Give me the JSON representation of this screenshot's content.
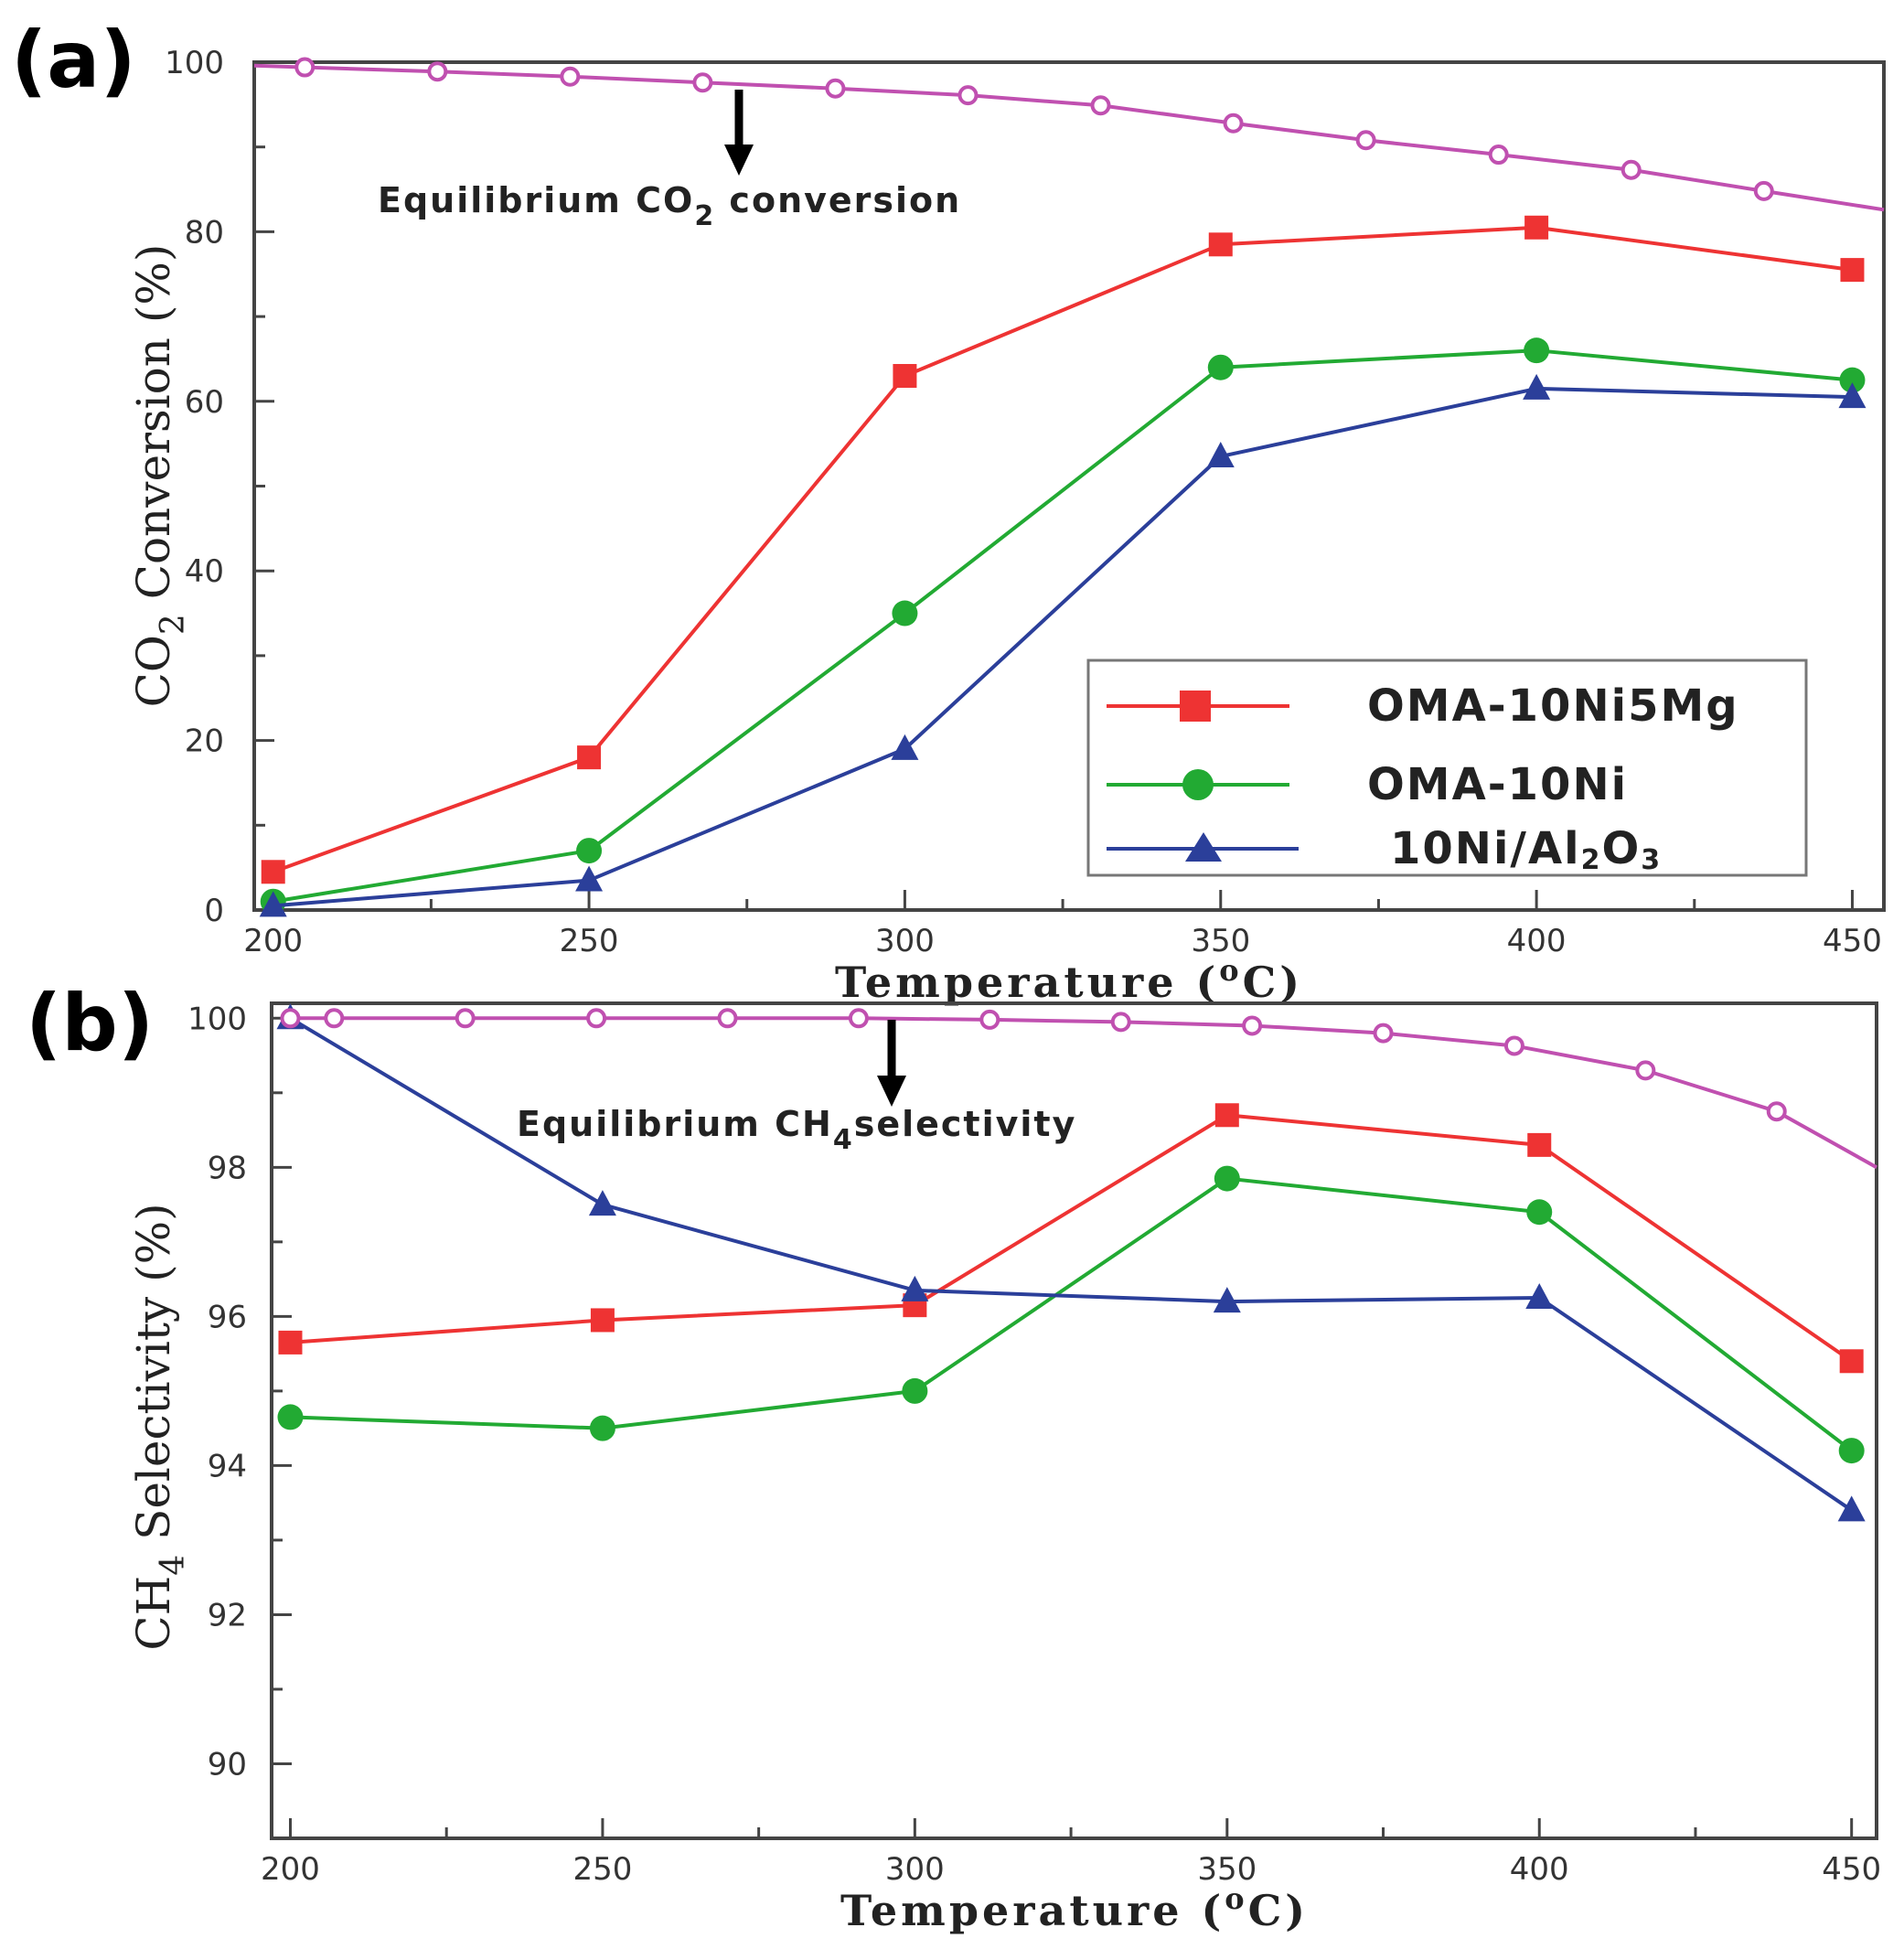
{
  "figure": {
    "panels": [
      {
        "panel_label": "(a)",
        "annotation": {
          "main": "Equilibrium CO",
          "sub": "2",
          "tail": " conversion"
        },
        "xlabel": {
          "main": "Temperature (",
          "sup": "o",
          "tail": "C)"
        },
        "ylabel": {
          "main": "CO",
          "sub": "2",
          "tail": " Conversion (%)"
        }
      },
      {
        "panel_label": "(b)",
        "annotation": {
          "main": "Equilibrium CH",
          "sub": "4",
          "tail": "selectivity"
        },
        "xlabel": {
          "main": "Temperature (",
          "sup": "o",
          "tail": "C)"
        },
        "ylabel": {
          "main": "CH",
          "sub": "4",
          "tail": " Selectivity (%)"
        }
      }
    ],
    "legend": [
      {
        "label": "OMA-10Ni5Mg",
        "color": "#ee3333",
        "marker": "square"
      },
      {
        "label": "OMA-10Ni",
        "color": "#22aa33",
        "marker": "circle"
      },
      {
        "label": "10Ni/Al",
        "sub1": "2",
        "mid": "O",
        "sub2": "3",
        "color": "#2b3f9a",
        "marker": "triangle"
      }
    ]
  },
  "chart_data": [
    {
      "type": "line",
      "title": "(a)",
      "xlabel": "Temperature (oC)",
      "ylabel": "CO2 Conversion (%)",
      "xlim": [
        197,
        455
      ],
      "ylim": [
        0,
        100
      ],
      "xticks": [
        200,
        250,
        300,
        350,
        400,
        450
      ],
      "yticks": [
        0,
        20,
        40,
        60,
        80,
        100
      ],
      "grid": false,
      "legend_position": "bottom-right",
      "annotation": "Equilibrium CO2 conversion",
      "series": [
        {
          "name": "OMA-10Ni5Mg",
          "color": "#ee3333",
          "marker": "square",
          "x": [
            200,
            250,
            300,
            350,
            400,
            450
          ],
          "y": [
            4.5,
            18,
            63,
            78.5,
            80.5,
            75.5
          ]
        },
        {
          "name": "OMA-10Ni",
          "color": "#22aa33",
          "marker": "circle",
          "x": [
            200,
            250,
            300,
            350,
            400,
            450
          ],
          "y": [
            1,
            7,
            35,
            64,
            66,
            62.5
          ]
        },
        {
          "name": "10Ni/Al2O3",
          "color": "#2b3f9a",
          "marker": "triangle",
          "x": [
            200,
            250,
            300,
            350,
            400,
            450
          ],
          "y": [
            0.5,
            3.5,
            19,
            53.5,
            61.5,
            60.5
          ]
        },
        {
          "name": "Equilibrium",
          "color": "#c050b0",
          "marker": "open-circle",
          "line_only_end": true,
          "x": [
            197,
            205,
            226,
            247,
            268,
            289,
            310,
            331,
            352,
            373,
            394,
            415,
            436,
            455
          ],
          "y": [
            99.6,
            99.4,
            98.9,
            98.3,
            97.6,
            96.9,
            96.1,
            94.9,
            92.8,
            90.8,
            89.1,
            87.3,
            84.8,
            82.6
          ]
        }
      ]
    },
    {
      "type": "line",
      "title": "(b)",
      "xlabel": "Temperature (oC)",
      "ylabel": "CH4 Selectivity (%)",
      "xlim": [
        197,
        454
      ],
      "ylim": [
        89,
        100.2
      ],
      "xticks": [
        200,
        250,
        300,
        350,
        400,
        450
      ],
      "yticks": [
        90,
        92,
        94,
        96,
        98,
        100
      ],
      "grid": false,
      "annotation": "Equilibrium CH4selectivity",
      "series": [
        {
          "name": "OMA-10Ni5Mg",
          "color": "#ee3333",
          "marker": "square",
          "x": [
            200,
            250,
            300,
            350,
            400,
            450
          ],
          "y": [
            95.65,
            95.95,
            96.15,
            98.7,
            98.3,
            95.4
          ]
        },
        {
          "name": "OMA-10Ni",
          "color": "#22aa33",
          "marker": "circle",
          "x": [
            200,
            250,
            300,
            350,
            400,
            450
          ],
          "y": [
            94.65,
            94.5,
            95.0,
            97.85,
            97.4,
            94.2
          ]
        },
        {
          "name": "10Ni/Al2O3",
          "color": "#2b3f9a",
          "marker": "triangle",
          "x": [
            200,
            250,
            300,
            350,
            400,
            450
          ],
          "y": [
            100,
            97.5,
            96.35,
            96.2,
            96.25,
            93.4
          ]
        },
        {
          "name": "Equilibrium",
          "color": "#c050b0",
          "marker": "open-circle",
          "x": [
            200,
            207,
            228,
            249,
            270,
            291,
            312,
            333,
            354,
            375,
            396,
            417,
            438,
            454
          ],
          "y": [
            100,
            100,
            100,
            100,
            100,
            100,
            99.98,
            99.95,
            99.9,
            99.8,
            99.63,
            99.3,
            98.75,
            98.0
          ]
        }
      ]
    }
  ]
}
